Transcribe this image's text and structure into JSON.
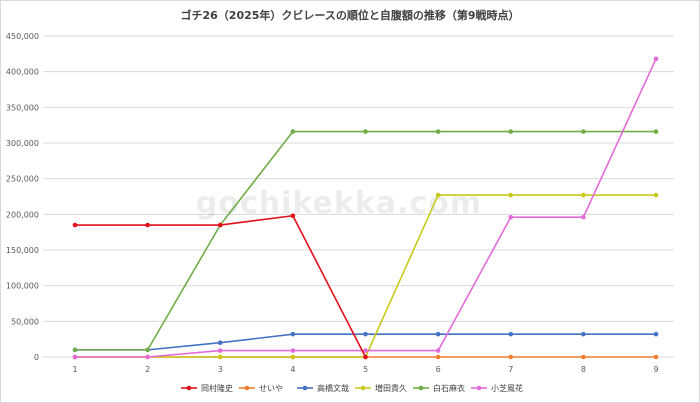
{
  "chart_data": {
    "type": "line",
    "title": "ゴチ26（2025年）クビレースの順位と自腹額の推移（第9戦時点）",
    "xlabel": "",
    "ylabel": "",
    "x": [
      1,
      2,
      3,
      4,
      5,
      6,
      7,
      8,
      9
    ],
    "ylim": [
      0,
      450000
    ],
    "yticks": [
      0,
      50000,
      100000,
      150000,
      200000,
      250000,
      300000,
      350000,
      400000,
      450000
    ],
    "ytick_labels": [
      "0",
      "50,000",
      "100,000",
      "150,000",
      "200,000",
      "250,000",
      "300,000",
      "350,000",
      "400,000",
      "450,000"
    ],
    "grid": true,
    "legend_position": "bottom",
    "watermark": "gochikekka.com",
    "series": [
      {
        "name": "岡村隆史",
        "color": "#e3101c",
        "values": [
          185000,
          185000,
          185000,
          198000,
          0,
          null,
          null,
          null,
          null
        ]
      },
      {
        "name": "せいや",
        "color": "#ed7d31",
        "values": [
          0,
          0,
          0,
          0,
          0,
          0,
          0,
          0,
          0
        ]
      },
      {
        "name": "高橋文哉",
        "color": "#4472c4",
        "values": [
          10000,
          10000,
          20000,
          32000,
          32000,
          32000,
          32000,
          32000,
          32000
        ]
      },
      {
        "name": "増田貴久",
        "color": "#c9c91b",
        "values": [
          0,
          0,
          0,
          0,
          0,
          227000,
          227000,
          227000,
          227000
        ]
      },
      {
        "name": "白石麻衣",
        "color": "#70ad47",
        "values": [
          10000,
          10000,
          185000,
          316000,
          316000,
          316000,
          316000,
          316000,
          316000
        ]
      },
      {
        "name": "小芝風花",
        "color": "#e36bd8",
        "values": [
          0,
          0,
          9000,
          9000,
          9000,
          9000,
          196000,
          196000,
          418000
        ]
      }
    ]
  }
}
